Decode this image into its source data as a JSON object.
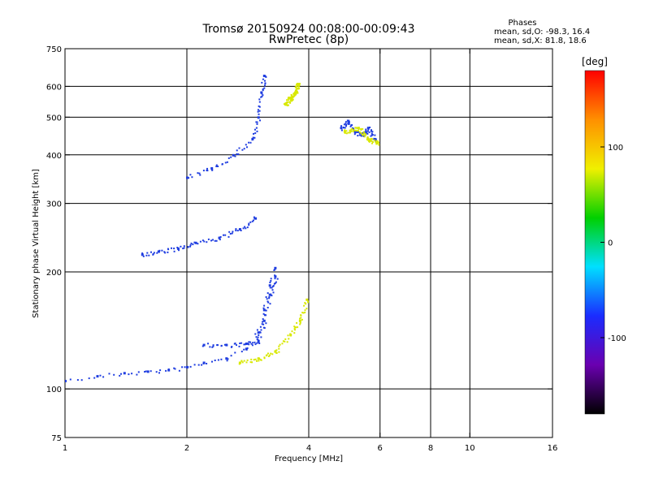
{
  "chart_data": {
    "type": "scatter",
    "title": "Tromsø 20150924 00:08:00-00:09:43",
    "subtitle": "RwPretec (8p)",
    "xlabel": "Frequency [MHz]",
    "ylabel": "Stationary phase Virtual Height [km]",
    "x_scale": "log",
    "y_scale": "log",
    "xlim": [
      1,
      16
    ],
    "ylim": [
      75,
      750
    ],
    "x_ticks": [
      1,
      2,
      4,
      6,
      8,
      10,
      16
    ],
    "x_tick_labels": [
      "1",
      "2",
      "4",
      "6",
      "8",
      "10",
      "16"
    ],
    "x_gridlines": [
      2,
      4,
      6,
      8,
      10
    ],
    "y_ticks": [
      75,
      100,
      200,
      300,
      400,
      500,
      600,
      750
    ],
    "y_tick_labels": [
      "75",
      "100",
      "200",
      "300",
      "400",
      "500",
      "600",
      "750"
    ],
    "y_gridlines": [
      100,
      200,
      300,
      400,
      500,
      600
    ],
    "grid": true,
    "legend": {
      "title": "Phases",
      "lines": [
        "mean, sd,O: -98.3, 16.4",
        "mean, sd,X:  81.8, 18.6"
      ],
      "placement": "top-right"
    },
    "colorbar": {
      "label": "[deg]",
      "range": [
        -180,
        180
      ],
      "ticks": [
        100,
        0,
        -100
      ],
      "tick_labels": [
        "100",
        "0",
        "-100"
      ],
      "colormap": [
        "#000000",
        "#6a00b0",
        "#1a2cff",
        "#00e0ff",
        "#00d000",
        "#f0f000",
        "#ff9000",
        "#ff0000"
      ],
      "placement": "right"
    },
    "series": [
      {
        "polarization": "O",
        "mean_phase": -98.3,
        "color": "#1f3de0",
        "traces": [
          {
            "trace": "E / low",
            "x": [
              1.0,
              1.2,
              1.4,
              1.6,
              1.8,
              2.0,
              2.2,
              2.5,
              2.8,
              3.0,
              3.1,
              3.2,
              3.3
            ],
            "y": [
              105,
              108,
              110,
              111,
              112,
              114,
              117,
              120,
              127,
              140,
              160,
              185,
              205
            ]
          },
          {
            "trace": "F1",
            "x": [
              2.2,
              2.5,
              2.8,
              3.0,
              3.1,
              3.2,
              3.3
            ],
            "y": [
              130,
              130,
              131,
              133,
              150,
              175,
              195
            ]
          },
          {
            "trace": "F layer",
            "x": [
              1.55,
              1.7,
              1.9,
              2.1,
              2.4,
              2.7,
              2.95
            ],
            "y": [
              222,
              226,
              230,
              238,
              245,
              258,
              275
            ]
          },
          {
            "trace": "multi-hop",
            "x": [
              2.0,
              2.3,
              2.6,
              2.9,
              3.0,
              3.05,
              3.1
            ],
            "y": [
              350,
              370,
              400,
              440,
              500,
              580,
              640
            ]
          },
          {
            "trace": "spread",
            "x": [
              4.8,
              5.0,
              5.2,
              5.4,
              5.6,
              5.8
            ],
            "y": [
              470,
              490,
              460,
              450,
              470,
              440
            ]
          }
        ]
      },
      {
        "polarization": "X",
        "mean_phase": 81.8,
        "color": "#d8e800",
        "traces": [
          {
            "trace": "low",
            "x": [
              2.7,
              3.0,
              3.3,
              3.6,
              3.8,
              3.95
            ],
            "y": [
              117,
              120,
              125,
              138,
              150,
              170
            ]
          },
          {
            "trace": "upper",
            "x": [
              3.5,
              3.6,
              3.7,
              3.75
            ],
            "y": [
              540,
              560,
              580,
              610
            ]
          },
          {
            "trace": "spread",
            "x": [
              4.9,
              5.3,
              5.6,
              5.9
            ],
            "y": [
              460,
              470,
              440,
              430
            ]
          }
        ]
      }
    ]
  }
}
